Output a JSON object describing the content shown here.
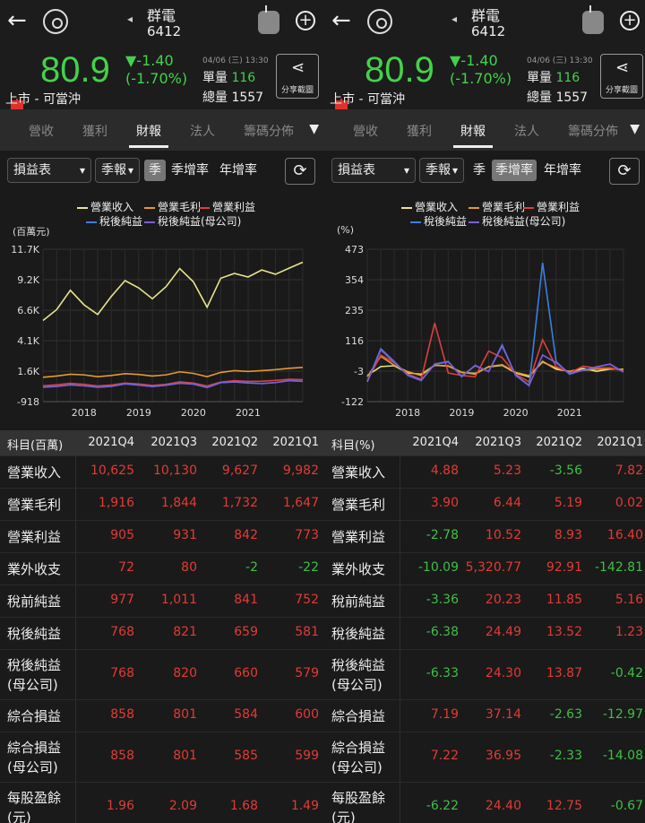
{
  "header": {
    "back_icon": "back-arrow-icon",
    "stock_name": "群電",
    "stock_code": "6412"
  },
  "quote": {
    "price": "80.9",
    "change": "▼-1.40",
    "change_pct": "(-1.70%)",
    "datetime": "04/06 (三) 13:30",
    "single_vol_label": "單量",
    "single_vol": "116",
    "total_vol": "總量 1557",
    "market_label": "上市 - 可當沖",
    "share_label": "分享截圖"
  },
  "tabs": [
    "營收",
    "獲利",
    "財報",
    "法人",
    "籌碼分佈"
  ],
  "active_tab": "財報",
  "controls": {
    "statement": "損益表",
    "period": "季報",
    "opt_q": "季",
    "opt_qoq": "季增率",
    "opt_yoy": "年增率"
  },
  "left_chart": {
    "legend": [
      "營業收入",
      "營業毛利",
      "營業利益",
      "稅後純益",
      "稅後純益(母公司)"
    ],
    "unit": "(百萬元)"
  },
  "right_chart": {
    "legend": [
      "營業收入",
      "營業毛利",
      "營業利益",
      "稅後純益",
      "稅後純益(母公司)"
    ],
    "unit": "(%)"
  },
  "colors": {
    "revenue": "#e8e48a",
    "gross": "#e49a2e",
    "operating": "#d9413b",
    "net": "#3b7fe0",
    "net_parent": "#7b5fd8",
    "up": "#e23b34",
    "down": "#3fbf45"
  },
  "chart_data": [
    {
      "type": "line",
      "title": "",
      "ylabel": "(百萬元)",
      "yticks": [
        "11.7K",
        "9.2K",
        "6.6K",
        "4.1K",
        "1.6K",
        "-918"
      ],
      "ylim": [
        -918,
        11700
      ],
      "xticks": [
        "2018",
        "2019",
        "2020",
        "2021"
      ],
      "x": [
        "2017Q1",
        "2017Q2",
        "2017Q3",
        "2017Q4",
        "2018Q1",
        "2018Q2",
        "2018Q3",
        "2018Q4",
        "2019Q1",
        "2019Q2",
        "2019Q3",
        "2019Q4",
        "2020Q1",
        "2020Q2",
        "2020Q3",
        "2020Q4",
        "2021Q1",
        "2021Q2",
        "2021Q3",
        "2021Q4"
      ],
      "series": [
        {
          "name": "營業收入",
          "values": [
            5800,
            6700,
            8300,
            7100,
            6300,
            7800,
            9100,
            8500,
            7600,
            8600,
            10100,
            9000,
            6900,
            9300,
            9700,
            9400,
            9982,
            9627,
            10130,
            10625
          ]
        },
        {
          "name": "營業毛利",
          "values": [
            1100,
            1200,
            1350,
            1300,
            1150,
            1250,
            1400,
            1330,
            1200,
            1300,
            1550,
            1420,
            1150,
            1500,
            1650,
            1580,
            1647,
            1732,
            1844,
            1916
          ]
        },
        {
          "name": "營業利益",
          "values": [
            400,
            480,
            600,
            520,
            380,
            460,
            620,
            540,
            420,
            520,
            720,
            620,
            380,
            700,
            820,
            760,
            773,
            842,
            931,
            905
          ]
        },
        {
          "name": "稅後純益",
          "values": [
            280,
            350,
            480,
            400,
            280,
            350,
            560,
            460,
            340,
            450,
            620,
            540,
            260,
            660,
            720,
            640,
            581,
            659,
            821,
            768
          ]
        },
        {
          "name": "稅後純益(母公司)",
          "values": [
            270,
            340,
            470,
            390,
            270,
            345,
            550,
            450,
            330,
            440,
            610,
            530,
            250,
            650,
            710,
            630,
            579,
            660,
            820,
            768
          ]
        }
      ]
    },
    {
      "type": "line",
      "title": "",
      "ylabel": "(%)",
      "yticks": [
        "473",
        "354",
        "235",
        "116",
        "-3",
        "-122"
      ],
      "ylim": [
        -122,
        473
      ],
      "xticks": [
        "2018",
        "2019",
        "2020",
        "2021"
      ],
      "x": [
        "2017Q1",
        "2017Q2",
        "2017Q3",
        "2017Q4",
        "2018Q1",
        "2018Q2",
        "2018Q3",
        "2018Q4",
        "2019Q1",
        "2019Q2",
        "2019Q3",
        "2019Q4",
        "2020Q1",
        "2020Q2",
        "2020Q3",
        "2020Q4",
        "2021Q1",
        "2021Q2",
        "2021Q3",
        "2021Q4"
      ],
      "series": [
        {
          "name": "營業收入",
          "values": [
            -20,
            15,
            18,
            -10,
            -15,
            20,
            17,
            -8,
            -12,
            14,
            20,
            -10,
            -25,
            35,
            5,
            -4,
            7.82,
            -3.56,
            5.23,
            4.88
          ]
        },
        {
          "name": "營業毛利",
          "values": [
            -25,
            55,
            20,
            -5,
            -20,
            20,
            18,
            -7,
            -15,
            15,
            22,
            -8,
            -20,
            32,
            10,
            -5,
            0.02,
            5.19,
            6.44,
            3.9
          ]
        },
        {
          "name": "營業利益",
          "values": [
            -40,
            60,
            30,
            -15,
            -35,
            185,
            -10,
            -20,
            -25,
            75,
            50,
            -15,
            -45,
            120,
            15,
            -10,
            16.4,
            8.93,
            10.52,
            -2.78
          ]
        },
        {
          "name": "稅後純益",
          "values": [
            -45,
            85,
            35,
            -20,
            -40,
            25,
            35,
            -25,
            20,
            -5,
            100,
            -20,
            -60,
            420,
            35,
            -15,
            1.23,
            13.52,
            24.49,
            -6.38
          ]
        },
        {
          "name": "稅後純益(母公司)",
          "values": [
            -45,
            80,
            32,
            -18,
            -38,
            24,
            33,
            -22,
            18,
            -4,
            95,
            -18,
            -58,
            60,
            30,
            -12,
            -0.42,
            13.87,
            24.3,
            -6.33
          ]
        }
      ]
    }
  ],
  "table_left": {
    "header": [
      "科目(百萬)",
      "2021Q4",
      "2021Q3",
      "2021Q2",
      "2021Q1"
    ],
    "rows": [
      {
        "label": "營業收入",
        "vals": [
          "10,625",
          "10,130",
          "9,627",
          "9,982"
        ],
        "cls": [
          "red",
          "red",
          "red",
          "red"
        ]
      },
      {
        "label": "營業毛利",
        "vals": [
          "1,916",
          "1,844",
          "1,732",
          "1,647"
        ],
        "cls": [
          "red",
          "red",
          "red",
          "red"
        ]
      },
      {
        "label": "營業利益",
        "vals": [
          "905",
          "931",
          "842",
          "773"
        ],
        "cls": [
          "red",
          "red",
          "red",
          "red"
        ]
      },
      {
        "label": "業外收支",
        "vals": [
          "72",
          "80",
          "-2",
          "-22"
        ],
        "cls": [
          "red",
          "red",
          "grn",
          "grn"
        ]
      },
      {
        "label": "稅前純益",
        "vals": [
          "977",
          "1,011",
          "841",
          "752"
        ],
        "cls": [
          "red",
          "red",
          "red",
          "red"
        ]
      },
      {
        "label": "稅後純益",
        "vals": [
          "768",
          "821",
          "659",
          "581"
        ],
        "cls": [
          "red",
          "red",
          "red",
          "red"
        ]
      },
      {
        "label": "稅後純益\n(母公司)",
        "vals": [
          "768",
          "820",
          "660",
          "579"
        ],
        "cls": [
          "red",
          "red",
          "red",
          "red"
        ]
      },
      {
        "label": "綜合損益",
        "vals": [
          "858",
          "801",
          "584",
          "600"
        ],
        "cls": [
          "red",
          "red",
          "red",
          "red"
        ]
      },
      {
        "label": "綜合損益\n(母公司)",
        "vals": [
          "858",
          "801",
          "585",
          "599"
        ],
        "cls": [
          "red",
          "red",
          "red",
          "red"
        ]
      },
      {
        "label": "每股盈餘\n(元)",
        "vals": [
          "1.96",
          "2.09",
          "1.68",
          "1.49"
        ],
        "cls": [
          "red",
          "red",
          "red",
          "red"
        ]
      }
    ]
  },
  "table_right": {
    "header": [
      "科目(%)",
      "2021Q4",
      "2021Q3",
      "2021Q2",
      "2021Q1"
    ],
    "rows": [
      {
        "label": "營業收入",
        "vals": [
          "4.88",
          "5.23",
          "-3.56",
          "7.82"
        ],
        "cls": [
          "red",
          "red",
          "grn",
          "red"
        ]
      },
      {
        "label": "營業毛利",
        "vals": [
          "3.90",
          "6.44",
          "5.19",
          "0.02"
        ],
        "cls": [
          "red",
          "red",
          "red",
          "red"
        ]
      },
      {
        "label": "營業利益",
        "vals": [
          "-2.78",
          "10.52",
          "8.93",
          "16.40"
        ],
        "cls": [
          "grn",
          "red",
          "red",
          "red"
        ]
      },
      {
        "label": "業外收支",
        "vals": [
          "-10.09",
          "5,320.77",
          "92.91",
          "-142.81"
        ],
        "cls": [
          "grn",
          "red",
          "red",
          "grn"
        ]
      },
      {
        "label": "稅前純益",
        "vals": [
          "-3.36",
          "20.23",
          "11.85",
          "5.16"
        ],
        "cls": [
          "grn",
          "red",
          "red",
          "red"
        ]
      },
      {
        "label": "稅後純益",
        "vals": [
          "-6.38",
          "24.49",
          "13.52",
          "1.23"
        ],
        "cls": [
          "grn",
          "red",
          "red",
          "red"
        ]
      },
      {
        "label": "稅後純益\n(母公司)",
        "vals": [
          "-6.33",
          "24.30",
          "13.87",
          "-0.42"
        ],
        "cls": [
          "grn",
          "red",
          "red",
          "grn"
        ]
      },
      {
        "label": "綜合損益",
        "vals": [
          "7.19",
          "37.14",
          "-2.63",
          "-12.97"
        ],
        "cls": [
          "red",
          "red",
          "grn",
          "grn"
        ]
      },
      {
        "label": "綜合損益\n(母公司)",
        "vals": [
          "7.22",
          "36.95",
          "-2.33",
          "-14.08"
        ],
        "cls": [
          "red",
          "red",
          "grn",
          "grn"
        ]
      },
      {
        "label": "每股盈餘\n(元)",
        "vals": [
          "-6.22",
          "24.40",
          "12.75",
          "-0.67"
        ],
        "cls": [
          "grn",
          "red",
          "red",
          "grn"
        ]
      }
    ]
  }
}
